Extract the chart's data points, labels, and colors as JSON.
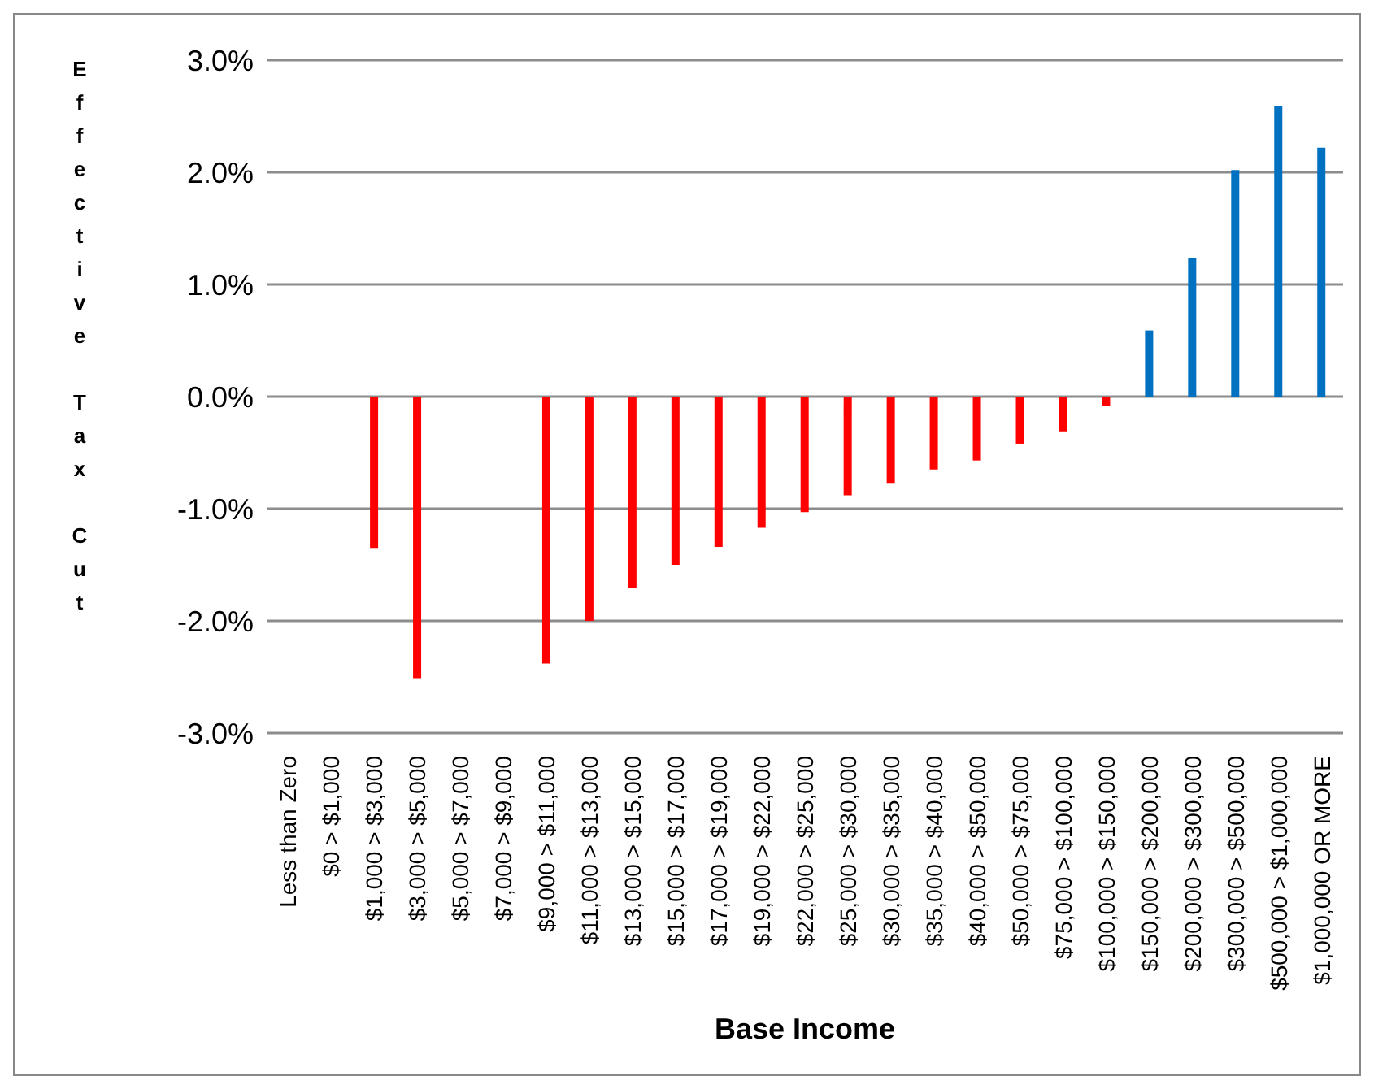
{
  "chart_data": {
    "type": "bar",
    "xlabel": "Base Income",
    "ylabel": "Effective Tax Cut",
    "categories": [
      "Less than Zero",
      "$0 > $1,000",
      "$1,000 > $3,000",
      "$3,000 > $5,000",
      "$5,000 > $7,000",
      "$7,000 > $9,000",
      "$9,000 > $11,000",
      "$11,000 > $13,000",
      "$13,000 > $15,000",
      "$15,000 > $17,000",
      "$17,000 > $19,000",
      "$19,000 > $22,000",
      "$22,000 > $25,000",
      "$25,000 > $30,000",
      "$30,000 > $35,000",
      "$35,000 > $40,000",
      "$40,000 > $50,000",
      "$50,000 > $75,000",
      "$75,000 > $100,000",
      "$100,000 > $150,000",
      "$150,000 > $200,000",
      "$200,000 > $300,000",
      "$300,000 > $500,000",
      "$500,000 > $1,000,000",
      "$1,000,000 OR MORE"
    ],
    "values": [
      null,
      0,
      -1.35,
      -2.51,
      0,
      0,
      -2.38,
      -2.0,
      -1.71,
      -1.5,
      -1.34,
      -1.17,
      -1.03,
      -0.88,
      -0.77,
      -0.65,
      -0.57,
      -0.42,
      -0.31,
      -0.08,
      0.59,
      1.24,
      2.02,
      2.59,
      2.22
    ],
    "colors": [
      "#ff0000",
      "#ff0000",
      "#ff0000",
      "#ff0000",
      "#ff0000",
      "#ff0000",
      "#ff0000",
      "#ff0000",
      "#ff0000",
      "#ff0000",
      "#ff0000",
      "#ff0000",
      "#ff0000",
      "#ff0000",
      "#ff0000",
      "#ff0000",
      "#ff0000",
      "#ff0000",
      "#ff0000",
      "#ff0000",
      "#0070c0",
      "#0070c0",
      "#0070c0",
      "#0070c0",
      "#0070c0"
    ],
    "ylim": [
      -3,
      3
    ],
    "yticks": [
      {
        "value": -3,
        "label": "-3.0%"
      },
      {
        "value": -2,
        "label": "-2.0%"
      },
      {
        "value": -1,
        "label": "-1.0%"
      },
      {
        "value": 0,
        "label": "0.0%"
      },
      {
        "value": 1,
        "label": "1.0%"
      },
      {
        "value": 2,
        "label": "2.0%"
      },
      {
        "value": 3,
        "label": "3.0%"
      }
    ],
    "grid": "y"
  }
}
